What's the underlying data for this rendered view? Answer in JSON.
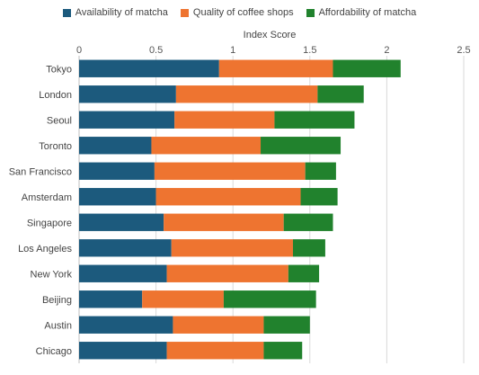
{
  "chart_data": {
    "type": "bar",
    "orientation": "horizontal",
    "stacked": true,
    "xlabel": "Index Score",
    "xlim": [
      0,
      2.5
    ],
    "xticks": [
      0,
      0.5,
      1,
      1.5,
      2,
      2.5
    ],
    "xtick_labels": [
      "0",
      "0.5",
      "1",
      "1.5",
      "2",
      "2.5"
    ],
    "grid": "vertical",
    "legend_position": "top",
    "categories": [
      "Tokyo",
      "London",
      "Seoul",
      "Toronto",
      "San Francisco",
      "Amsterdam",
      "Singapore",
      "Los Angeles",
      "New York",
      "Beijing",
      "Austin",
      "Chicago"
    ],
    "series": [
      {
        "name": "Availability of matcha",
        "color": "#1c5a7d",
        "values": [
          0.91,
          0.63,
          0.62,
          0.47,
          0.49,
          0.5,
          0.55,
          0.6,
          0.57,
          0.41,
          0.61,
          0.57
        ]
      },
      {
        "name": "Quality of coffee shops",
        "color": "#ee7430",
        "values": [
          0.74,
          0.92,
          0.65,
          0.71,
          0.98,
          0.94,
          0.78,
          0.79,
          0.79,
          0.53,
          0.59,
          0.63
        ]
      },
      {
        "name": "Affordability of matcha",
        "color": "#21822d",
        "values": [
          0.44,
          0.3,
          0.52,
          0.52,
          0.2,
          0.24,
          0.32,
          0.21,
          0.2,
          0.6,
          0.3,
          0.25
        ]
      }
    ]
  }
}
